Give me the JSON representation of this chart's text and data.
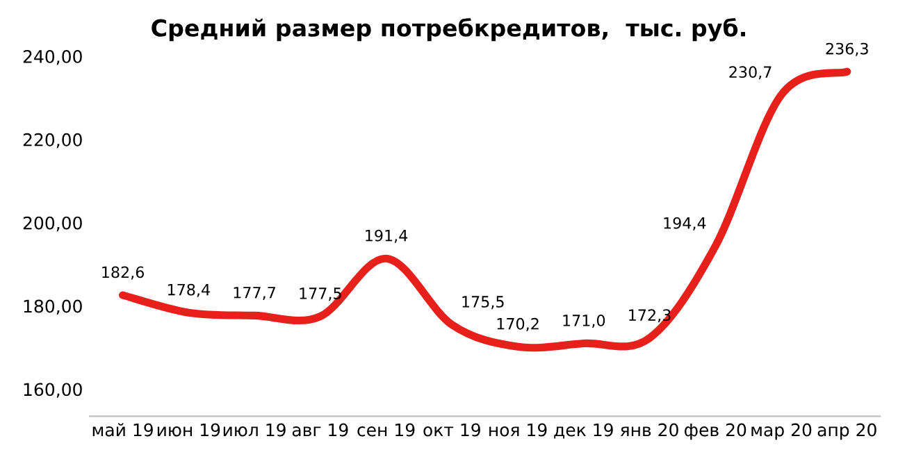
{
  "chart_data": {
    "type": "line",
    "title": "Средний размер потребкредитов,  тыс. руб.",
    "categories": [
      "май 19",
      "июн 19",
      "июл 19",
      "авг 19",
      "сен 19",
      "окт 19",
      "ноя 19",
      "дек 19",
      "янв 20",
      "фев 20",
      "мар 20",
      "апр 20"
    ],
    "series": [
      {
        "color": "#e8201c",
        "values": [
          182.6,
          178.4,
          177.7,
          177.5,
          191.4,
          175.5,
          170.2,
          171.0,
          172.3,
          194.4,
          230.7,
          236.3
        ],
        "value_labels": [
          "182,6",
          "178,4",
          "177,7",
          "177,5",
          "191,4",
          "175,5",
          "170,2",
          "171,0",
          "172,3",
          "194,4",
          "230,7",
          "236,3"
        ]
      }
    ],
    "ylim": [
      153.5,
      240
    ],
    "yticks": [
      {
        "value": 160,
        "label": "160,00"
      },
      {
        "value": 180,
        "label": "180,00"
      },
      {
        "value": 200,
        "label": "200,00"
      },
      {
        "value": 220,
        "label": "220,00"
      },
      {
        "value": 240,
        "label": "240,00"
      }
    ],
    "grid": false,
    "marker": "none",
    "line_style": "solid"
  }
}
